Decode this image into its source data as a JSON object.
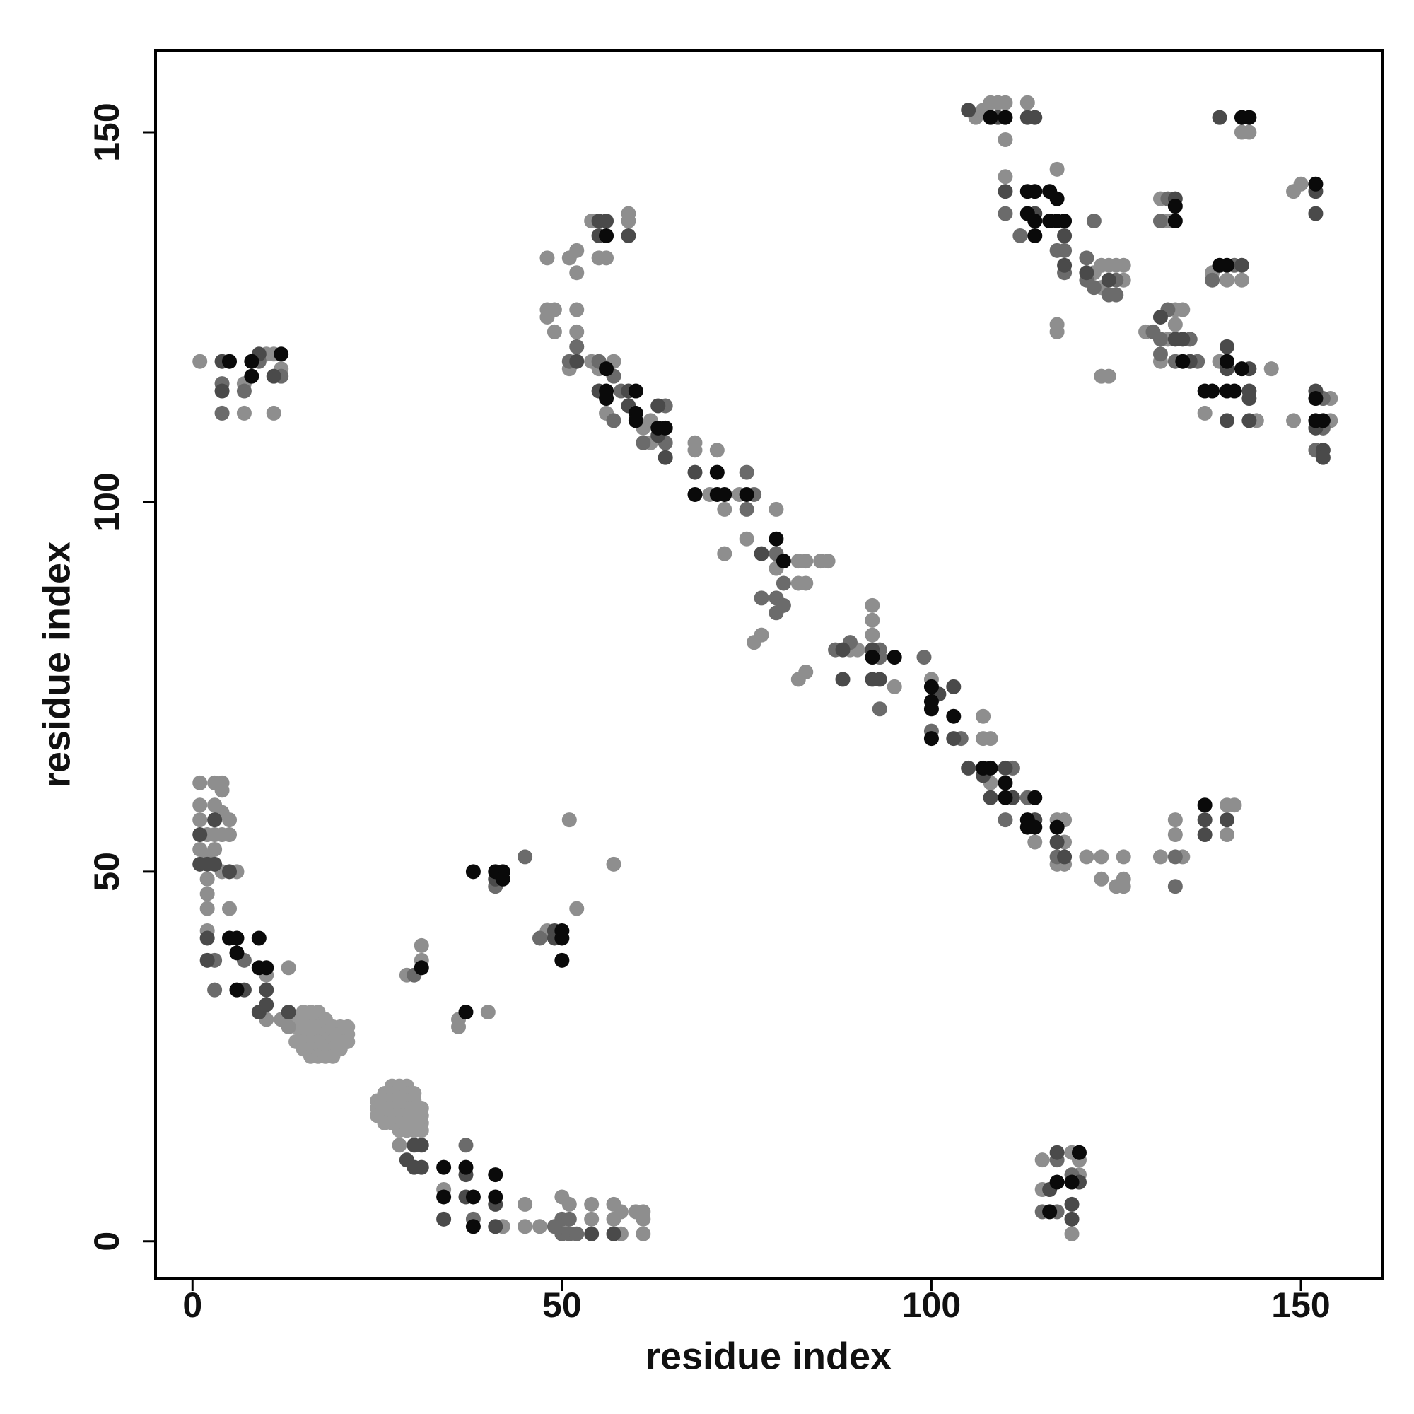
{
  "chart_data": {
    "type": "scatter",
    "xlabel": "residue index",
    "ylabel": "residue index",
    "xlim": [
      -5,
      161
    ],
    "ylim": [
      -5,
      161
    ],
    "xticks": [
      0,
      50,
      100,
      150
    ],
    "yticks": [
      0,
      50,
      100,
      150
    ],
    "grid": false,
    "series": [
      {
        "color": "#999999",
        "x": [
          15,
          16,
          17,
          14,
          15,
          16,
          17,
          18,
          14,
          15,
          16,
          17,
          18,
          19,
          20,
          21,
          15,
          16,
          17,
          18,
          19,
          20,
          21,
          14,
          15,
          16,
          17,
          18,
          19,
          20,
          21,
          15,
          16,
          17,
          18,
          19,
          20,
          16,
          17,
          18,
          19,
          27,
          28,
          29,
          26,
          27,
          28,
          29,
          30,
          25,
          26,
          27,
          28,
          29,
          30,
          25,
          26,
          27,
          28,
          29,
          30,
          31,
          25,
          26,
          27,
          28,
          29,
          30,
          31,
          26,
          27,
          28,
          29,
          30,
          31,
          28,
          29,
          30,
          31
        ],
        "values": [
          31,
          31,
          31,
          30,
          30,
          30,
          30,
          30,
          29,
          29,
          29,
          29,
          29,
          29,
          29,
          29,
          28,
          28,
          28,
          28,
          28,
          28,
          28,
          27,
          27,
          27,
          27,
          27,
          27,
          27,
          27,
          26,
          26,
          26,
          26,
          26,
          26,
          25,
          25,
          25,
          25,
          21,
          21,
          21,
          20,
          20,
          20,
          20,
          20,
          19,
          19,
          19,
          19,
          19,
          19,
          18,
          18,
          18,
          18,
          18,
          18,
          18,
          17,
          17,
          17,
          17,
          17,
          17,
          17,
          16,
          16,
          16,
          16,
          16,
          16,
          15,
          15,
          15,
          15
        ]
      },
      {
        "color": "#8e8e8e",
        "x": [
          1,
          3,
          4,
          4,
          1,
          3,
          4,
          5,
          1,
          2,
          3,
          4,
          5,
          1,
          2,
          3,
          4,
          2,
          2,
          2,
          5,
          2,
          6,
          10,
          13,
          10,
          12,
          13,
          28,
          34,
          42,
          45,
          45,
          47,
          50,
          50,
          51,
          54,
          54,
          57,
          57,
          58,
          58,
          60,
          61,
          61,
          61,
          31,
          31,
          29,
          36,
          36,
          40,
          51,
          57,
          52,
          48,
          1,
          10,
          11,
          12,
          7,
          7,
          11,
          48,
          51,
          52,
          52,
          54,
          55,
          56,
          59,
          59,
          48,
          49,
          48,
          49,
          52,
          52,
          51,
          54,
          55,
          57,
          56,
          61,
          62,
          62,
          68,
          68,
          71,
          70,
          74,
          72,
          79,
          72,
          75,
          79,
          82,
          83,
          85,
          86,
          82,
          83,
          77,
          76,
          83,
          82,
          89,
          90,
          92,
          92,
          92,
          95,
          100,
          107,
          107,
          108,
          108,
          114,
          117,
          118,
          118,
          117,
          118,
          121,
          123,
          123,
          126,
          126,
          125,
          126,
          131,
          133,
          133,
          134,
          140,
          140,
          141,
          115,
          115,
          119,
          120,
          120,
          119,
          106,
          107,
          108,
          109,
          110,
          110,
          113,
          110,
          117,
          122,
          123,
          123,
          124,
          125,
          126,
          126,
          117,
          117,
          123,
          124,
          131,
          132,
          142,
          143,
          149,
          150,
          138,
          140,
          142,
          129,
          133,
          134,
          133,
          132,
          131,
          139,
          146,
          137,
          144,
          149,
          154,
          154
        ],
        "values": [
          62,
          62,
          62,
          61,
          59,
          59,
          58,
          57,
          57,
          55,
          55,
          55,
          55,
          53,
          52,
          53,
          50,
          49,
          47,
          45,
          45,
          42,
          50,
          36,
          37,
          30,
          30,
          29,
          13,
          7,
          2,
          2,
          5,
          2,
          2,
          6,
          5,
          3,
          5,
          5,
          3,
          1,
          4,
          4,
          4,
          3,
          1,
          40,
          38,
          36,
          30,
          29,
          31,
          57,
          51,
          45,
          42,
          119,
          120,
          120,
          118,
          116,
          112,
          112,
          133,
          133,
          134,
          131,
          138,
          133,
          133,
          139,
          138,
          126,
          126,
          125,
          123,
          126,
          123,
          118,
          119,
          118,
          119,
          112,
          110,
          111,
          108,
          108,
          107,
          107,
          101,
          101,
          99,
          99,
          93,
          95,
          91,
          92,
          92,
          92,
          92,
          89,
          89,
          82,
          81,
          77,
          76,
          80,
          80,
          84,
          86,
          82,
          75,
          76,
          71,
          68,
          68,
          62,
          54,
          57,
          57,
          54,
          51,
          51,
          52,
          52,
          49,
          52,
          49,
          48,
          48,
          52,
          55,
          57,
          52,
          55,
          59,
          59,
          11,
          7,
          12,
          11,
          9,
          1,
          152,
          153,
          154,
          154,
          154,
          149,
          154,
          144,
          145,
          131,
          129,
          132,
          132,
          132,
          132,
          130,
          124,
          123,
          117,
          117,
          141,
          138,
          150,
          150,
          142,
          143,
          131,
          130,
          130,
          123,
          126,
          126,
          124,
          122,
          119,
          119,
          118,
          112,
          111,
          111,
          114,
          111
        ]
      },
      {
        "color": "#6b6b6b",
        "x": [
          3,
          7,
          3,
          30,
          37,
          50,
          51,
          50,
          51,
          52,
          49,
          38,
          41,
          45,
          47,
          4,
          4,
          7,
          12,
          9,
          52,
          51,
          55,
          57,
          57,
          58,
          64,
          64,
          61,
          75,
          76,
          75,
          79,
          80,
          77,
          79,
          80,
          79,
          87,
          89,
          93,
          93,
          93,
          99,
          100,
          104,
          111,
          110,
          113,
          117,
          133,
          133,
          115,
          117,
          117,
          119,
          110,
          112,
          122,
          117,
          118,
          118,
          121,
          121,
          122,
          125,
          124,
          125,
          132,
          131,
          138,
          141,
          130,
          132,
          131,
          135,
          131,
          133,
          136,
          153,
          153,
          152
        ],
        "values": [
          38,
          38,
          34,
          36,
          13,
          3,
          3,
          1,
          1,
          1,
          2,
          3,
          48,
          52,
          41,
          116,
          112,
          115,
          117,
          119,
          121,
          119,
          119,
          117,
          111,
          115,
          113,
          108,
          108,
          104,
          101,
          99,
          93,
          89,
          87,
          87,
          86,
          85,
          80,
          81,
          80,
          79,
          72,
          79,
          69,
          68,
          64,
          57,
          60,
          52,
          52,
          48,
          4,
          11,
          4,
          9,
          139,
          136,
          138,
          134,
          134,
          131,
          133,
          130,
          129,
          130,
          128,
          128,
          141,
          138,
          130,
          132,
          123,
          126,
          122,
          122,
          120,
          119,
          119,
          114,
          110,
          107
        ]
      },
      {
        "color": "#4a4a4a",
        "x": [
          1,
          1,
          2,
          3,
          5,
          3,
          2,
          2,
          7,
          10,
          9,
          10,
          13,
          30,
          31,
          29,
          30,
          31,
          37,
          37,
          41,
          34,
          41,
          54,
          57,
          41,
          49,
          49,
          4,
          4,
          9,
          11,
          55,
          55,
          56,
          59,
          52,
          55,
          59,
          59,
          63,
          63,
          64,
          68,
          77,
          88,
          92,
          88,
          92,
          93,
          101,
          103,
          103,
          105,
          107,
          108,
          110,
          111,
          114,
          117,
          118,
          137,
          137,
          140,
          117,
          116,
          120,
          119,
          119,
          105,
          109,
          113,
          114,
          110,
          114,
          118,
          118,
          121,
          124,
          133,
          139,
          152,
          152,
          142,
          131,
          133,
          134,
          135,
          140,
          140,
          143,
          143,
          143,
          140,
          143,
          152,
          152,
          153,
          153
        ],
        "values": [
          55,
          51,
          51,
          51,
          50,
          57,
          41,
          38,
          34,
          34,
          31,
          32,
          31,
          13,
          13,
          11,
          10,
          10,
          9,
          6,
          5,
          3,
          2,
          1,
          1,
          49,
          42,
          41,
          119,
          115,
          120,
          117,
          138,
          136,
          138,
          136,
          119,
          115,
          115,
          113,
          113,
          109,
          106,
          104,
          93,
          80,
          80,
          76,
          76,
          76,
          74,
          75,
          68,
          64,
          63,
          60,
          64,
          60,
          57,
          54,
          52,
          55,
          57,
          57,
          12,
          7,
          8,
          5,
          3,
          153,
          152,
          152,
          152,
          142,
          139,
          136,
          132,
          131,
          130,
          141,
          152,
          142,
          139,
          132,
          125,
          122,
          122,
          119,
          121,
          118,
          118,
          115,
          114,
          111,
          111,
          115,
          110,
          107,
          106
        ]
      },
      {
        "color": "#0a0a0a",
        "x": [
          5,
          6,
          9,
          6,
          9,
          10,
          6,
          34,
          37,
          41,
          34,
          38,
          41,
          38,
          37,
          31,
          38,
          41,
          42,
          42,
          50,
          50,
          50,
          5,
          8,
          12,
          8,
          56,
          56,
          56,
          56,
          60,
          60,
          60,
          63,
          64,
          71,
          68,
          71,
          72,
          75,
          79,
          80,
          95,
          92,
          100,
          100,
          100,
          103,
          100,
          107,
          108,
          110,
          110,
          114,
          113,
          114,
          113,
          117,
          137,
          117,
          116,
          120,
          119,
          108,
          110,
          113,
          114,
          113,
          114,
          114,
          116,
          117,
          116,
          117,
          118,
          133,
          133,
          142,
          143,
          152,
          139,
          140,
          134,
          140,
          142,
          137,
          138,
          140,
          141,
          152,
          152,
          153
        ],
        "values": [
          41,
          41,
          41,
          39,
          37,
          37,
          34,
          10,
          10,
          9,
          6,
          6,
          6,
          2,
          31,
          37,
          50,
          50,
          50,
          49,
          42,
          41,
          38,
          119,
          119,
          120,
          117,
          136,
          118,
          115,
          114,
          115,
          112,
          111,
          110,
          110,
          104,
          101,
          101,
          101,
          101,
          95,
          92,
          79,
          79,
          75,
          73,
          72,
          71,
          68,
          64,
          64,
          62,
          60,
          60,
          57,
          56,
          56,
          56,
          59,
          8,
          4,
          12,
          8,
          152,
          152,
          142,
          142,
          139,
          138,
          136,
          142,
          141,
          138,
          138,
          138,
          140,
          138,
          152,
          152,
          143,
          132,
          132,
          119,
          119,
          118,
          115,
          115,
          115,
          115,
          114,
          111,
          111
        ]
      }
    ]
  }
}
